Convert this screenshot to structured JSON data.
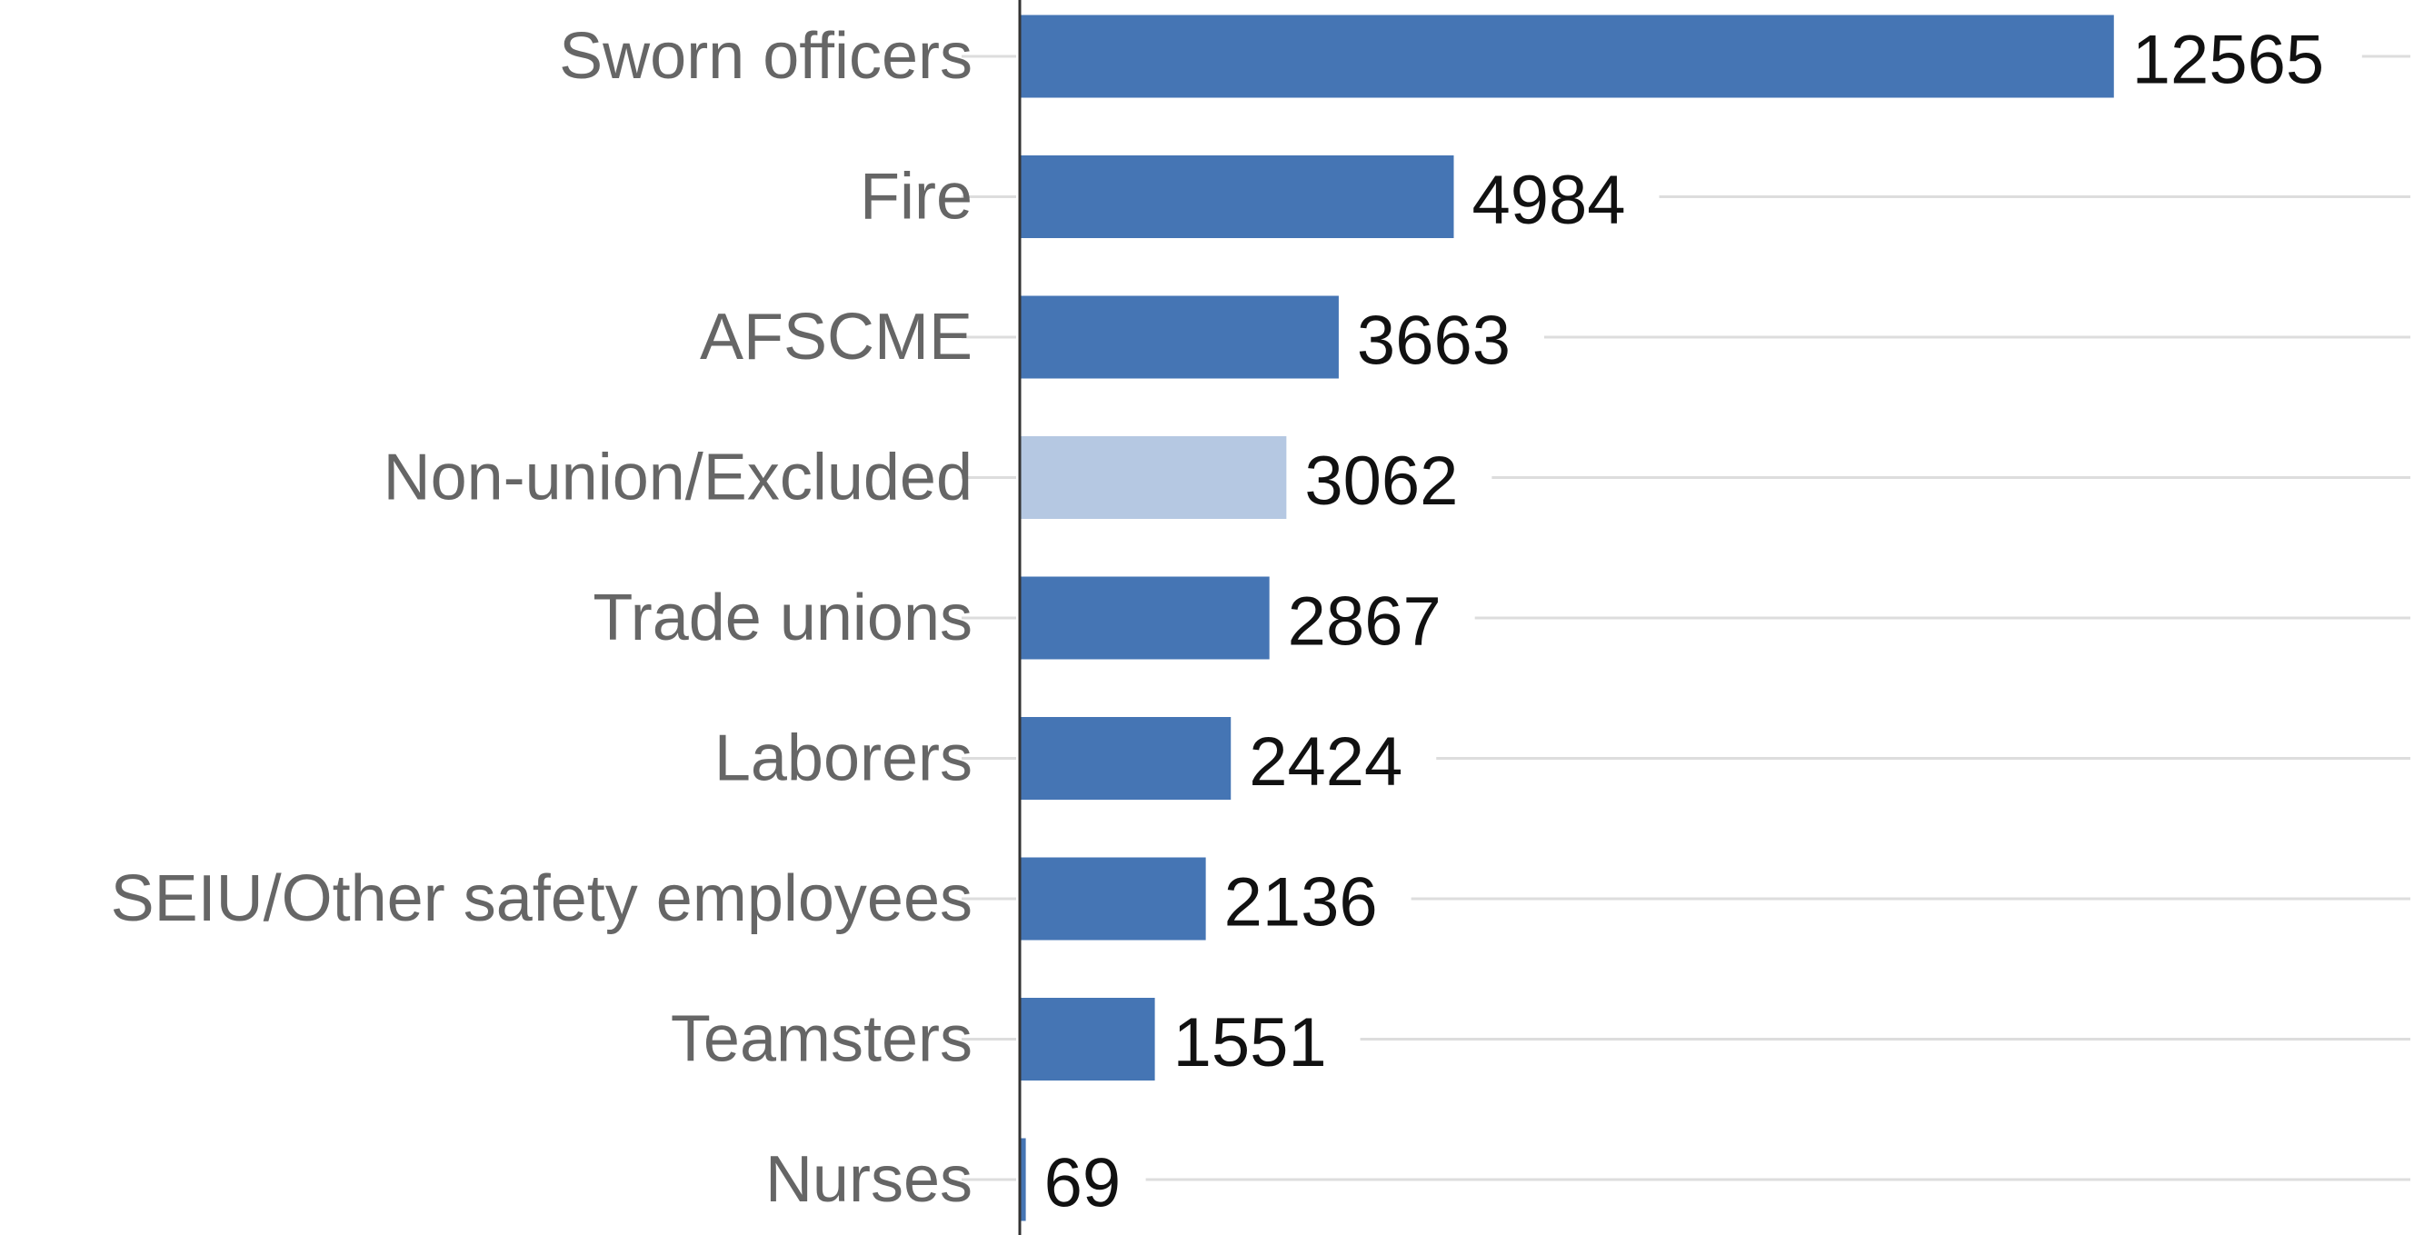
{
  "chart_data": {
    "type": "bar",
    "orientation": "horizontal",
    "title": "",
    "xlabel": "",
    "ylabel": "",
    "categories": [
      "Sworn officers",
      "Fire",
      "AFSCME",
      "Non-union/Excluded",
      "Trade unions",
      "Laborers",
      "SEIU/Other safety employees",
      "Teamsters",
      "Nurses"
    ],
    "values": [
      12565,
      4984,
      3663,
      3062,
      2867,
      2424,
      2136,
      1551,
      69
    ],
    "value_labels": [
      "12565",
      "4984",
      "3663",
      "3062",
      "2867",
      "2424",
      "2136",
      "1551",
      "69"
    ],
    "xlim": [
      0,
      15970
    ],
    "grid": true,
    "legend": "none",
    "colors": {
      "bar": "#4575b4",
      "highlight": "#b5c8e2",
      "grid": "#dddddd",
      "axis": "#333333",
      "category_text": "#666666",
      "value_text": "#111111"
    },
    "highlight_categories": [
      "Non-union/Excluded"
    ]
  }
}
